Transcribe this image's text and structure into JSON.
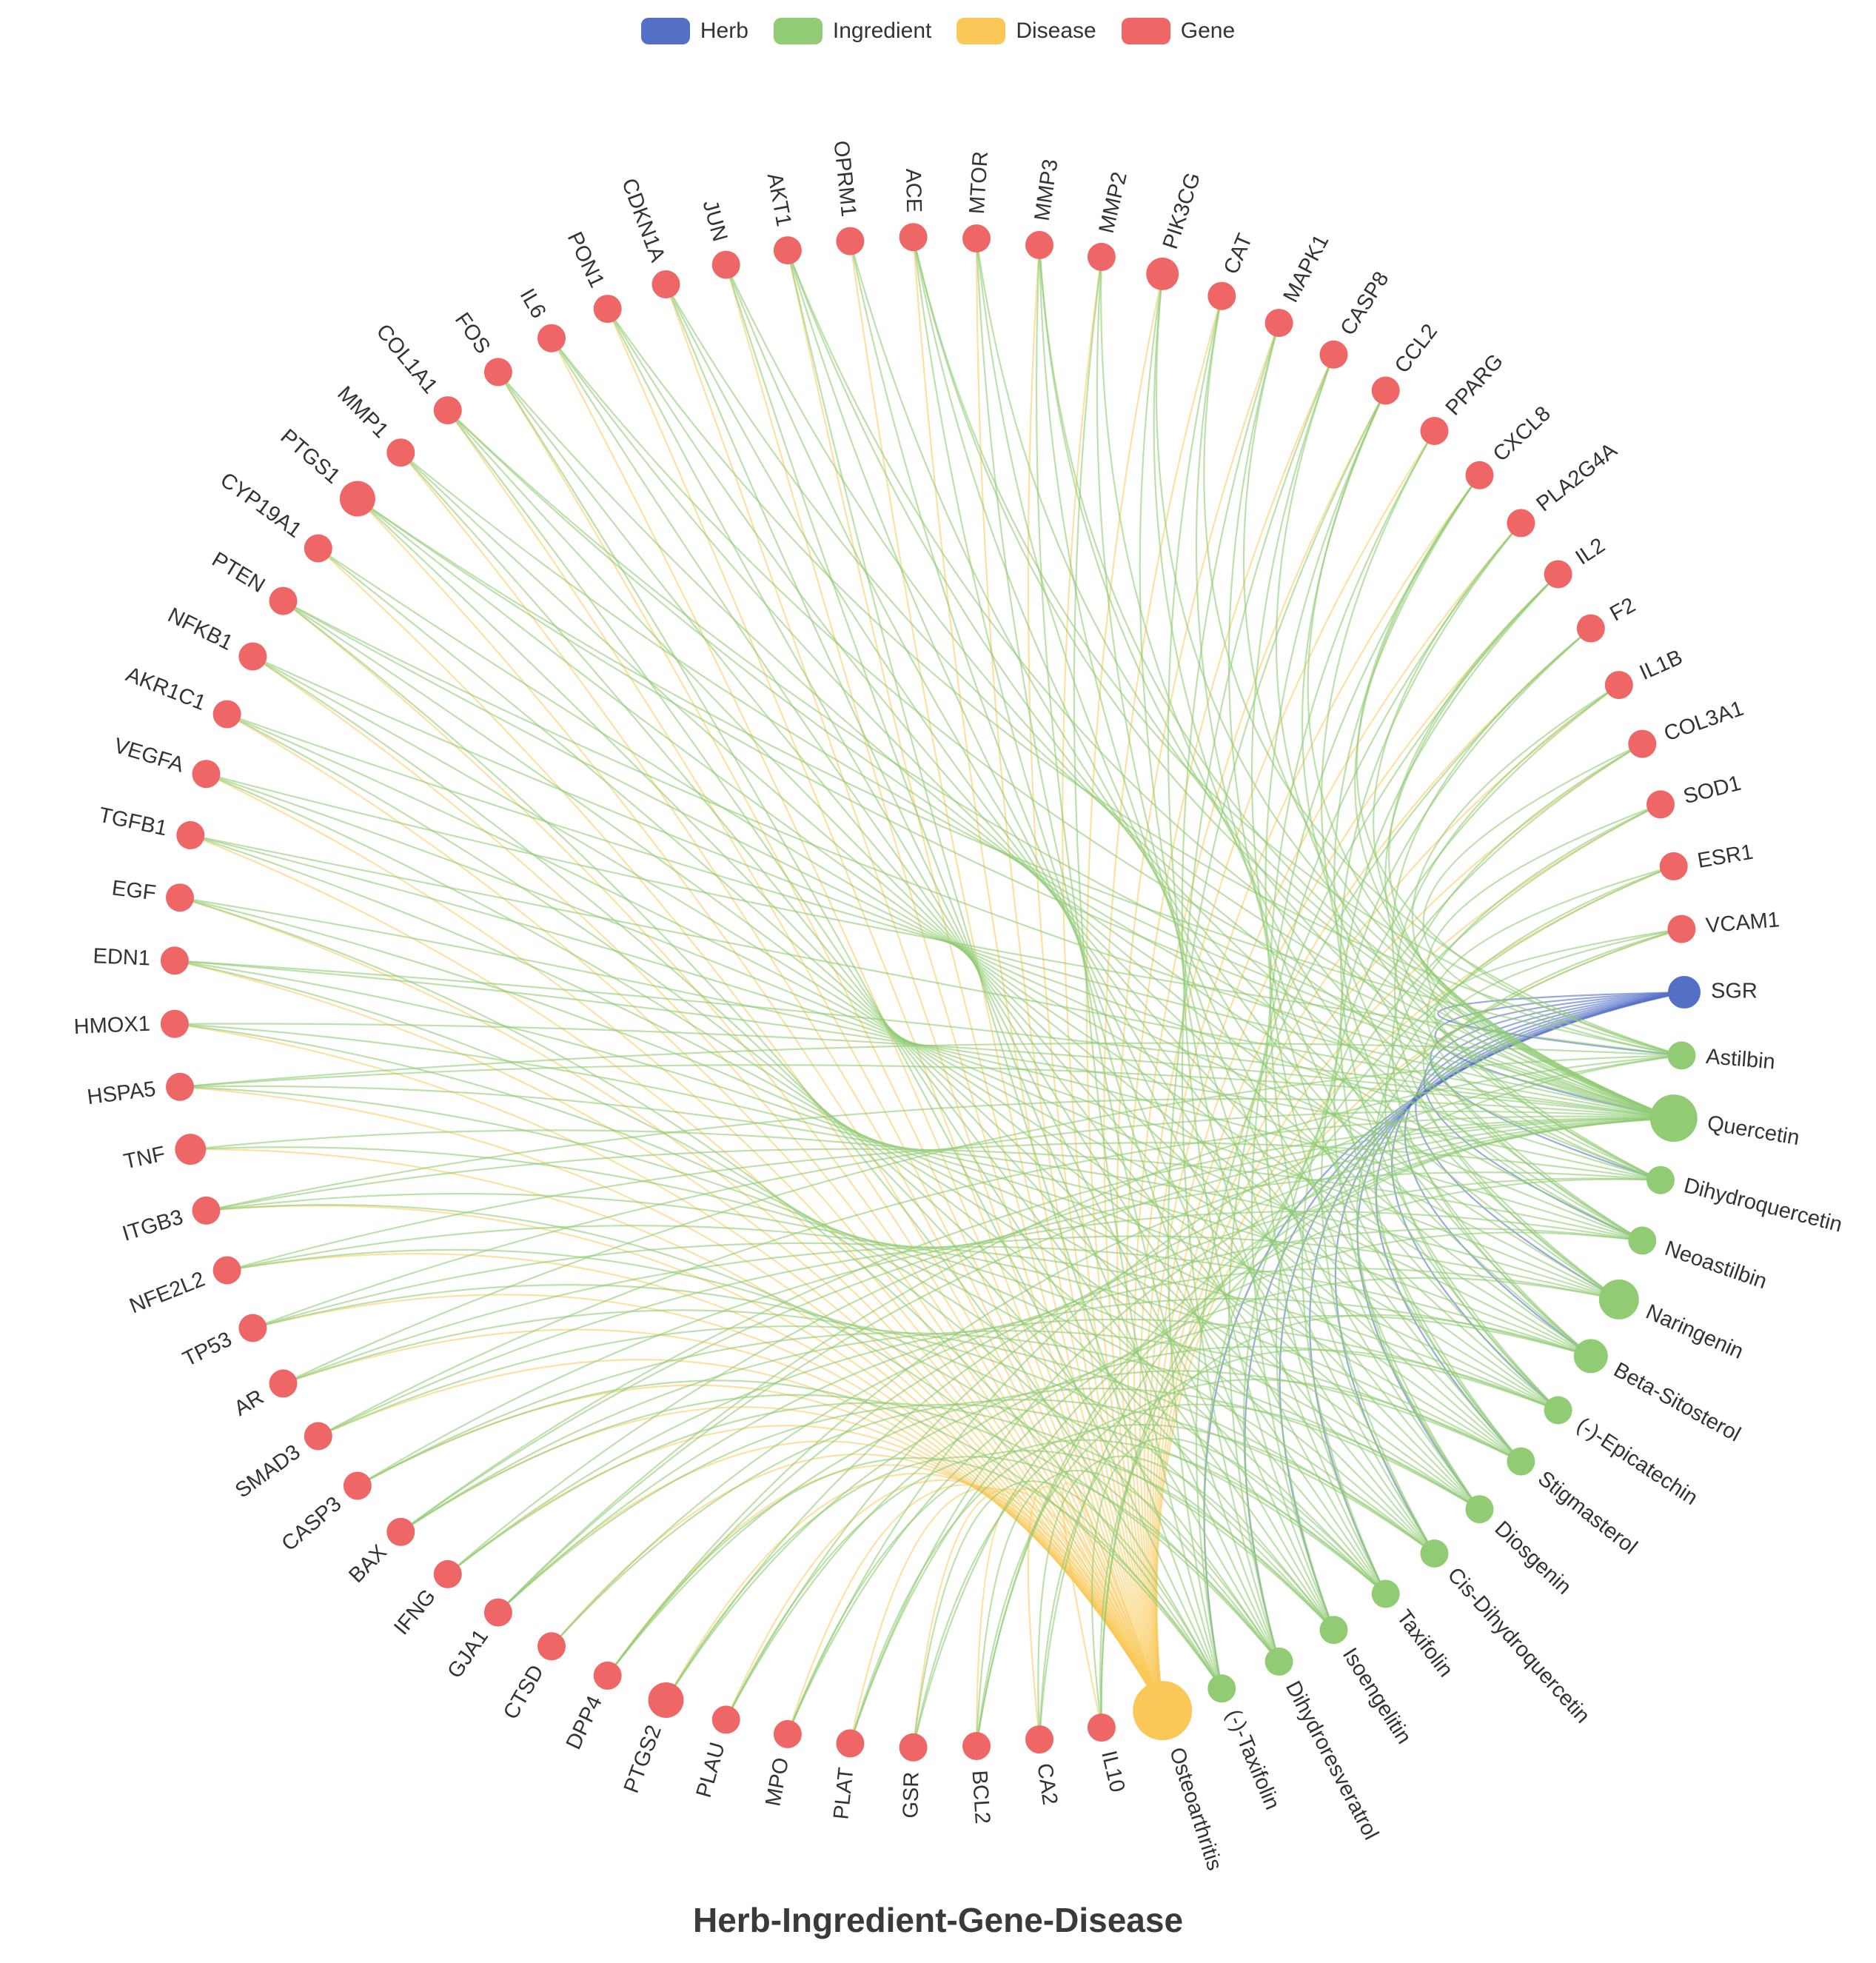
{
  "title": "Herb-Ingredient-Gene-Disease",
  "legend": [
    {
      "label": "Herb",
      "color": "#5470c6"
    },
    {
      "label": "Ingredient",
      "color": "#91cc75"
    },
    {
      "label": "Disease",
      "color": "#fac858"
    },
    {
      "label": "Gene",
      "color": "#ee6666"
    }
  ],
  "nodes": [
    {
      "name": "SGR",
      "category": "Herb"
    },
    {
      "name": "Astilbin",
      "category": "Ingredient"
    },
    {
      "name": "Quercetin",
      "category": "Ingredient"
    },
    {
      "name": "Dihydroquercetin",
      "category": "Ingredient"
    },
    {
      "name": "Neoastilbin",
      "category": "Ingredient"
    },
    {
      "name": "Naringenin",
      "category": "Ingredient"
    },
    {
      "name": "Beta-Sitosterol",
      "category": "Ingredient"
    },
    {
      "name": "(-)-Epicatechin",
      "category": "Ingredient"
    },
    {
      "name": "Stigmasterol",
      "category": "Ingredient"
    },
    {
      "name": "Diosgenin",
      "category": "Ingredient"
    },
    {
      "name": "Cis-Dihydroquercetin",
      "category": "Ingredient"
    },
    {
      "name": "Taxifolin",
      "category": "Ingredient"
    },
    {
      "name": "Isoengelitin",
      "category": "Ingredient"
    },
    {
      "name": "Dihydroresveratrol",
      "category": "Ingredient"
    },
    {
      "name": "(-)-Taxifolin",
      "category": "Ingredient"
    },
    {
      "name": "Osteoarthritis",
      "category": "Disease"
    },
    {
      "name": "IL10",
      "category": "Gene"
    },
    {
      "name": "CA2",
      "category": "Gene"
    },
    {
      "name": "BCL2",
      "category": "Gene"
    },
    {
      "name": "GSR",
      "category": "Gene"
    },
    {
      "name": "PLAT",
      "category": "Gene"
    },
    {
      "name": "MPO",
      "category": "Gene"
    },
    {
      "name": "PLAU",
      "category": "Gene"
    },
    {
      "name": "PTGS2",
      "category": "Gene"
    },
    {
      "name": "DPP4",
      "category": "Gene"
    },
    {
      "name": "CTSD",
      "category": "Gene"
    },
    {
      "name": "GJA1",
      "category": "Gene"
    },
    {
      "name": "IFNG",
      "category": "Gene"
    },
    {
      "name": "BAX",
      "category": "Gene"
    },
    {
      "name": "CASP3",
      "category": "Gene"
    },
    {
      "name": "SMAD3",
      "category": "Gene"
    },
    {
      "name": "AR",
      "category": "Gene"
    },
    {
      "name": "TP53",
      "category": "Gene"
    },
    {
      "name": "NFE2L2",
      "category": "Gene"
    },
    {
      "name": "ITGB3",
      "category": "Gene"
    },
    {
      "name": "TNF",
      "category": "Gene"
    },
    {
      "name": "HSPA5",
      "category": "Gene"
    },
    {
      "name": "HMOX1",
      "category": "Gene"
    },
    {
      "name": "EDN1",
      "category": "Gene"
    },
    {
      "name": "EGF",
      "category": "Gene"
    },
    {
      "name": "TGFB1",
      "category": "Gene"
    },
    {
      "name": "VEGFA",
      "category": "Gene"
    },
    {
      "name": "AKR1C1",
      "category": "Gene"
    },
    {
      "name": "NFKB1",
      "category": "Gene"
    },
    {
      "name": "PTEN",
      "category": "Gene"
    },
    {
      "name": "CYP19A1",
      "category": "Gene"
    },
    {
      "name": "PTGS1",
      "category": "Gene"
    },
    {
      "name": "MMP1",
      "category": "Gene"
    },
    {
      "name": "COL1A1",
      "category": "Gene"
    },
    {
      "name": "FOS",
      "category": "Gene"
    },
    {
      "name": "IL6",
      "category": "Gene"
    },
    {
      "name": "PON1",
      "category": "Gene"
    },
    {
      "name": "CDKN1A",
      "category": "Gene"
    },
    {
      "name": "JUN",
      "category": "Gene"
    },
    {
      "name": "AKT1",
      "category": "Gene"
    },
    {
      "name": "OPRM1",
      "category": "Gene"
    },
    {
      "name": "ACE",
      "category": "Gene"
    },
    {
      "name": "MTOR",
      "category": "Gene"
    },
    {
      "name": "MMP3",
      "category": "Gene"
    },
    {
      "name": "MMP2",
      "category": "Gene"
    },
    {
      "name": "PIK3CG",
      "category": "Gene"
    },
    {
      "name": "CAT",
      "category": "Gene"
    },
    {
      "name": "MAPK1",
      "category": "Gene"
    },
    {
      "name": "CASP8",
      "category": "Gene"
    },
    {
      "name": "CCL2",
      "category": "Gene"
    },
    {
      "name": "PPARG",
      "category": "Gene"
    },
    {
      "name": "CXCL8",
      "category": "Gene"
    },
    {
      "name": "PLA2G4A",
      "category": "Gene"
    },
    {
      "name": "IL2",
      "category": "Gene"
    },
    {
      "name": "F2",
      "category": "Gene"
    },
    {
      "name": "IL1B",
      "category": "Gene"
    },
    {
      "name": "COL3A1",
      "category": "Gene"
    },
    {
      "name": "SOD1",
      "category": "Gene"
    },
    {
      "name": "ESR1",
      "category": "Gene"
    },
    {
      "name": "VCAM1",
      "category": "Gene"
    }
  ]
}
